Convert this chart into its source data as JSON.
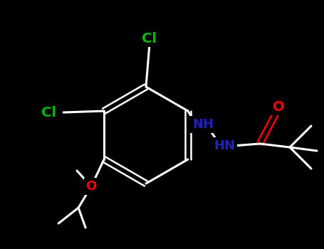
{
  "background_color": "#000000",
  "bond_color": "#ffffff",
  "atom_colors": {
    "Cl": "#00bb00",
    "O": "#ff0000",
    "N": "#2222bb",
    "default": "#ffffff"
  },
  "figsize": [
    4.55,
    3.5
  ],
  "dpi": 100,
  "xlim": [
    0,
    455
  ],
  "ylim": [
    0,
    350
  ],
  "bw": 2.2
}
